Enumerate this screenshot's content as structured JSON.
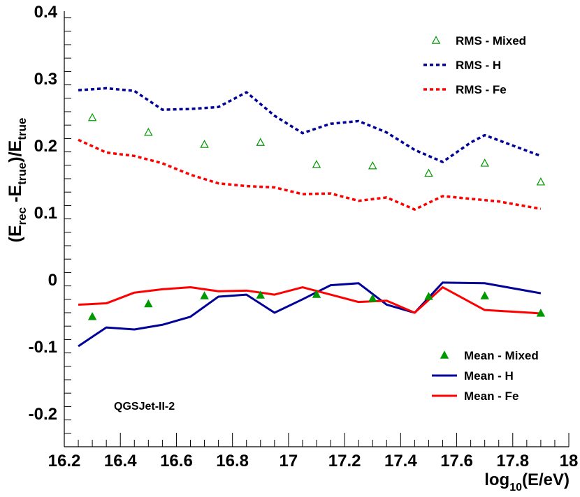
{
  "chart_data": {
    "type": "line",
    "xlabel": "log10(E/eV)",
    "ylabel": "(Erec-Etrue)/Etrue",
    "xlim": [
      16.2,
      18.0
    ],
    "ylim": [
      -0.25,
      0.4
    ],
    "x_ticks": [
      "16.2",
      "16.4",
      "16.6",
      "16.8",
      "17",
      "17.2",
      "17.4",
      "17.6",
      "17.8",
      "18"
    ],
    "y_ticks": [
      "-0.2",
      "-0.1",
      "0",
      "0.1",
      "0.2",
      "0.3",
      "0.4"
    ],
    "x_tick_values": [
      16.2,
      16.4,
      16.6,
      16.8,
      17.0,
      17.2,
      17.4,
      17.6,
      17.8,
      18.0
    ],
    "y_tick_values": [
      -0.2,
      -0.1,
      0,
      0.1,
      0.2,
      0.3,
      0.4
    ],
    "annotation": "QGSJet-II-2",
    "series": [
      {
        "name": "RMS - H",
        "kind": "dashed-line",
        "color": "#000099",
        "x": [
          16.25,
          16.35,
          16.45,
          16.55,
          16.65,
          16.75,
          16.85,
          16.95,
          17.05,
          17.15,
          17.25,
          17.35,
          17.45,
          17.55,
          17.65,
          17.7,
          17.9
        ],
        "y": [
          0.282,
          0.285,
          0.281,
          0.253,
          0.254,
          0.257,
          0.279,
          0.244,
          0.218,
          0.232,
          0.236,
          0.219,
          0.193,
          0.175,
          0.204,
          0.215,
          0.184
        ]
      },
      {
        "name": "RMS - Fe",
        "kind": "dashed-line",
        "color": "#ff0000",
        "x": [
          16.25,
          16.35,
          16.45,
          16.55,
          16.65,
          16.75,
          16.85,
          16.95,
          17.05,
          17.15,
          17.25,
          17.35,
          17.45,
          17.55,
          17.65,
          17.75,
          17.9
        ],
        "y": [
          0.208,
          0.189,
          0.184,
          0.173,
          0.156,
          0.143,
          0.139,
          0.137,
          0.127,
          0.128,
          0.117,
          0.122,
          0.104,
          0.124,
          0.12,
          0.116,
          0.105
        ]
      },
      {
        "name": "RMS - Mixed",
        "kind": "open-triangle",
        "color": "#009900",
        "x": [
          16.3,
          16.5,
          16.7,
          16.9,
          17.1,
          17.3,
          17.5,
          17.7,
          17.9
        ],
        "y": [
          0.241,
          0.219,
          0.201,
          0.204,
          0.171,
          0.169,
          0.158,
          0.173,
          0.145
        ]
      },
      {
        "name": "Mean - H",
        "kind": "solid-line",
        "color": "#000099",
        "x": [
          16.25,
          16.35,
          16.45,
          16.55,
          16.65,
          16.75,
          16.85,
          16.95,
          17.05,
          17.15,
          17.25,
          17.35,
          17.45,
          17.55,
          17.7,
          17.9
        ],
        "y": [
          -0.1,
          -0.072,
          -0.075,
          -0.068,
          -0.056,
          -0.026,
          -0.023,
          -0.05,
          -0.03,
          -0.009,
          -0.006,
          -0.038,
          -0.05,
          -0.005,
          -0.006,
          -0.021
        ]
      },
      {
        "name": "Mean - Fe",
        "kind": "solid-line",
        "color": "#ff0000",
        "x": [
          16.25,
          16.35,
          16.45,
          16.55,
          16.65,
          16.75,
          16.85,
          16.95,
          17.05,
          17.15,
          17.25,
          17.35,
          17.45,
          17.55,
          17.7,
          17.9
        ],
        "y": [
          -0.038,
          -0.036,
          -0.02,
          -0.015,
          -0.012,
          -0.018,
          -0.017,
          -0.023,
          -0.012,
          -0.023,
          -0.034,
          -0.032,
          -0.05,
          -0.012,
          -0.046,
          -0.051
        ]
      },
      {
        "name": "Mean - Mixed",
        "kind": "filled-triangle",
        "color": "#009900",
        "x": [
          16.3,
          16.5,
          16.7,
          16.9,
          17.1,
          17.3,
          17.5,
          17.7,
          17.9
        ],
        "y": [
          -0.056,
          -0.037,
          -0.025,
          -0.024,
          -0.023,
          -0.029,
          -0.026,
          -0.025,
          -0.051
        ]
      }
    ],
    "legend_top": [
      "RMS - Mixed",
      "RMS - H",
      "RMS - Fe"
    ],
    "legend_bottom": [
      "Mean - Mixed",
      "Mean - H",
      "Mean - Fe"
    ]
  }
}
